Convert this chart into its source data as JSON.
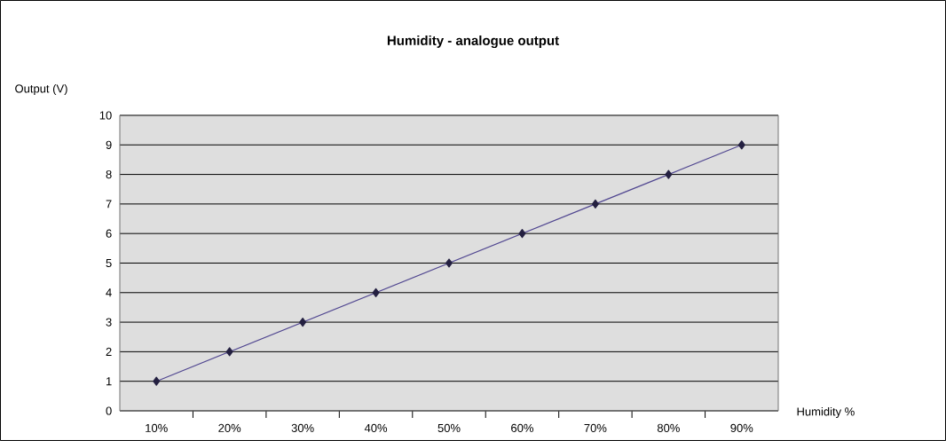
{
  "chart_data": {
    "type": "line",
    "title": "Humidity - analogue output",
    "xlabel": "Humidity %",
    "ylabel": "Output (V)",
    "categories": [
      "10%",
      "20%",
      "30%",
      "40%",
      "50%",
      "60%",
      "70%",
      "80%",
      "90%"
    ],
    "series": [
      {
        "color": "#504690",
        "values": [
          1,
          2,
          3,
          4,
          5,
          6,
          7,
          8,
          9
        ]
      }
    ],
    "ylim": [
      0,
      10
    ],
    "yticks": [
      0,
      1,
      2,
      3,
      4,
      5,
      6,
      7,
      8,
      9,
      10
    ],
    "grid": "y",
    "marker": "diamond",
    "line_style": "solid"
  }
}
